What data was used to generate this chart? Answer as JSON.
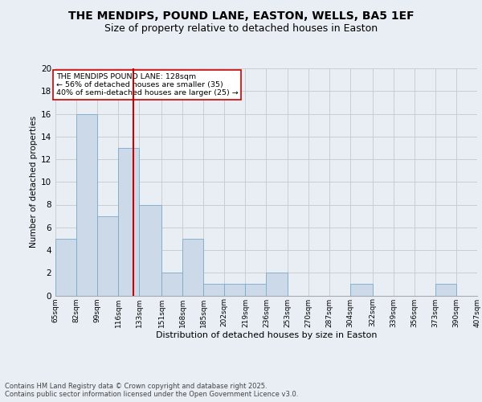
{
  "title_line1": "THE MENDIPS, POUND LANE, EASTON, WELLS, BA5 1EF",
  "title_line2": "Size of property relative to detached houses in Easton",
  "xlabel": "Distribution of detached houses by size in Easton",
  "ylabel": "Number of detached properties",
  "bar_color": "#ccd9e8",
  "bar_edge_color": "#7aaac8",
  "grid_color": "#cccccc",
  "ref_line_color": "#cc0000",
  "ref_line_x": 128,
  "annotation_text": "THE MENDIPS POUND LANE: 128sqm\n← 56% of detached houses are smaller (35)\n40% of semi-detached houses are larger (25) →",
  "annotation_box_color": "#ffffff",
  "annotation_box_edge": "#cc0000",
  "footer_text": "Contains HM Land Registry data © Crown copyright and database right 2025.\nContains public sector information licensed under the Open Government Licence v3.0.",
  "bin_edges": [
    65,
    82,
    99,
    116,
    133,
    151,
    168,
    185,
    202,
    219,
    236,
    253,
    270,
    287,
    304,
    322,
    339,
    356,
    373,
    390,
    407
  ],
  "bin_labels": [
    "65sqm",
    "82sqm",
    "99sqm",
    "116sqm",
    "133sqm",
    "151sqm",
    "168sqm",
    "185sqm",
    "202sqm",
    "219sqm",
    "236sqm",
    "253sqm",
    "270sqm",
    "287sqm",
    "304sqm",
    "322sqm",
    "339sqm",
    "356sqm",
    "373sqm",
    "390sqm",
    "407sqm"
  ],
  "counts": [
    5,
    16,
    7,
    13,
    8,
    2,
    5,
    1,
    1,
    1,
    2,
    0,
    0,
    0,
    1,
    0,
    0,
    0,
    1,
    0
  ],
  "ylim": [
    0,
    20
  ],
  "yticks": [
    0,
    2,
    4,
    6,
    8,
    10,
    12,
    14,
    16,
    18,
    20
  ],
  "background_color": "#e8eef4",
  "title_fontsize": 10,
  "subtitle_fontsize": 9
}
